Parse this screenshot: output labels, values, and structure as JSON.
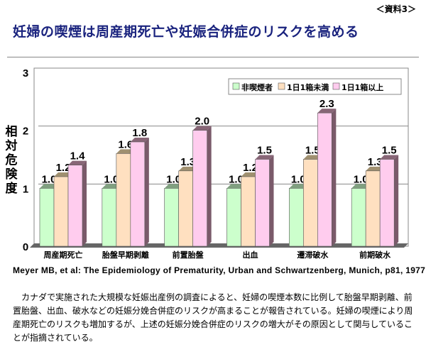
{
  "ref_label": "＜資料3＞",
  "title": "妊婦の喫煙は周産期死亡や妊娠合併症のリスクを高める",
  "source": "Meyer MB, et al: The Epidemiology of Prematurity, Urban and Schwartzenberg, Munich, p81, 1977",
  "body_text": "　カナダで実施された大規模な妊娠出産例の調査によると、妊婦の喫煙本数に比例して胎盤早期剥離、前置胎盤、出血、破水などの妊娠分娩合併症のリスクが高まることが報告されている。妊婦の喫煙により周産期死亡のリスクも増加するが、上述の妊娠分娩合併症のリスクの増大がその原因として関与していることが指摘されている。",
  "chart_data": {
    "type": "bar",
    "title": "",
    "ylabel": "相対危険度",
    "xlabel": "",
    "ylim": [
      0,
      3
    ],
    "yticks": [
      "0",
      "1",
      "2",
      "3"
    ],
    "grid": true,
    "legend_position": "top-right",
    "categories": [
      "周産期死亡",
      "胎盤早期剥離",
      "前置胎盤",
      "出血",
      "遷滞破水",
      "前期破水"
    ],
    "series": [
      {
        "name": "非喫煙者",
        "color": "#ccffcc",
        "values": [
          1.0,
          1.0,
          1.0,
          1.0,
          1.0,
          1.0
        ]
      },
      {
        "name": "1日1箱未満",
        "color": "#ffe0c0",
        "values": [
          1.2,
          1.6,
          1.3,
          1.2,
          1.5,
          1.3
        ]
      },
      {
        "name": "1日1箱以上",
        "color": "#ffccee",
        "values": [
          1.4,
          1.8,
          2.0,
          1.5,
          2.3,
          1.5
        ]
      }
    ]
  }
}
